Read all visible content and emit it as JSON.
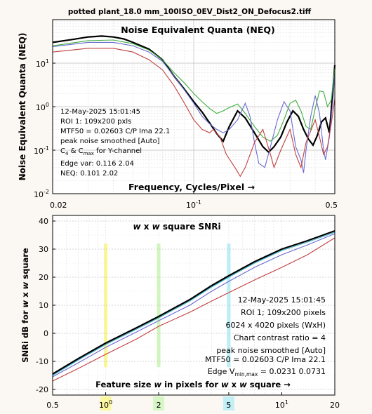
{
  "file_title": "potted plant_18.0 mm_100ISO_0EV_Dist2_ON_Defocus2.tiff",
  "colors": {
    "background": "#fbf8f3",
    "title": "#7a1a6e",
    "black": "#000000",
    "green": "#3cae3c",
    "blue": "#6a6ad0",
    "red": "#c04040",
    "cyan": "#38b0c8",
    "band_yellow": "#fbf77a",
    "band_green": "#c8f5b0",
    "band_cyan": "#a9ecf7"
  },
  "chart_data": [
    {
      "type": "line",
      "title": "Noise Equivalent Quanta (NEQ)",
      "xlabel": "Frequency, Cycles/Pixel →",
      "ylabel": "Noise Equivalent Quanta (NEQ)",
      "xscale": "log",
      "yscale": "log",
      "xlim": [
        0.02,
        0.5
      ],
      "ylim": [
        0.01,
        100
      ],
      "xticks": [
        {
          "value": 0.02,
          "label": "0.02"
        },
        {
          "value": 0.1,
          "label": "10^-1"
        },
        {
          "value": 0.5,
          "label": "0.5"
        }
      ],
      "yticks": [
        {
          "value": 0.01,
          "label": "10^-2"
        },
        {
          "value": 0.1,
          "label": "10^-1"
        },
        {
          "value": 1,
          "label": "10^0"
        },
        {
          "value": 10,
          "label": "10^1"
        }
      ],
      "grid": true,
      "annotations": [
        "12-May-2025 15:01:45",
        "ROI 1:  109x200 pxls",
        "MTF50 = 0.02603 C/P  Ima 22.1",
        "peak noise smoothed  [Auto]",
        "C_4 & C_max for Y-channel",
        "Edge var:  0.116  2.04",
        "NEQ:      0.101  2.02"
      ],
      "series": [
        {
          "color": "black",
          "points": [
            [
              0.02,
              30
            ],
            [
              0.025,
              35
            ],
            [
              0.03,
              40
            ],
            [
              0.035,
              42
            ],
            [
              0.04,
              40
            ],
            [
              0.045,
              36
            ],
            [
              0.05,
              30
            ],
            [
              0.06,
              21
            ],
            [
              0.07,
              12
            ],
            [
              0.08,
              5
            ],
            [
              0.09,
              2.5
            ],
            [
              0.1,
              1.3
            ],
            [
              0.11,
              0.75
            ],
            [
              0.12,
              0.42
            ],
            [
              0.13,
              0.24
            ],
            [
              0.14,
              0.16
            ],
            [
              0.15,
              0.35
            ],
            [
              0.165,
              0.8
            ],
            [
              0.18,
              0.55
            ],
            [
              0.2,
              0.25
            ],
            [
              0.22,
              0.12
            ],
            [
              0.235,
              0.09
            ],
            [
              0.25,
              0.12
            ],
            [
              0.27,
              0.2
            ],
            [
              0.29,
              0.45
            ],
            [
              0.31,
              0.8
            ],
            [
              0.33,
              0.6
            ],
            [
              0.35,
              0.3
            ],
            [
              0.37,
              0.18
            ],
            [
              0.39,
              0.13
            ],
            [
              0.41,
              0.22
            ],
            [
              0.43,
              0.45
            ],
            [
              0.45,
              0.55
            ],
            [
              0.47,
              0.25
            ],
            [
              0.48,
              0.8
            ],
            [
              0.5,
              9
            ]
          ]
        },
        {
          "color": "green",
          "points": [
            [
              0.02,
              25
            ],
            [
              0.03,
              33
            ],
            [
              0.04,
              34
            ],
            [
              0.05,
              28
            ],
            [
              0.06,
              20
            ],
            [
              0.07,
              12
            ],
            [
              0.08,
              6
            ],
            [
              0.09,
              3.5
            ],
            [
              0.1,
              2
            ],
            [
              0.11,
              1.3
            ],
            [
              0.12,
              0.9
            ],
            [
              0.13,
              0.7
            ],
            [
              0.14,
              0.8
            ],
            [
              0.15,
              0.95
            ],
            [
              0.165,
              1.15
            ],
            [
              0.18,
              0.7
            ],
            [
              0.2,
              0.35
            ],
            [
              0.22,
              0.2
            ],
            [
              0.24,
              0.16
            ],
            [
              0.26,
              0.22
            ],
            [
              0.28,
              0.5
            ],
            [
              0.3,
              1.2
            ],
            [
              0.32,
              1.4
            ],
            [
              0.34,
              0.8
            ],
            [
              0.36,
              0.35
            ],
            [
              0.38,
              0.3
            ],
            [
              0.4,
              0.9
            ],
            [
              0.42,
              2.3
            ],
            [
              0.44,
              2.2
            ],
            [
              0.46,
              1.0
            ],
            [
              0.48,
              1.4
            ],
            [
              0.5,
              8
            ]
          ]
        },
        {
          "color": "blue",
          "points": [
            [
              0.02,
              24
            ],
            [
              0.03,
              30
            ],
            [
              0.04,
              30
            ],
            [
              0.05,
              25
            ],
            [
              0.06,
              18
            ],
            [
              0.07,
              11
            ],
            [
              0.08,
              5
            ],
            [
              0.09,
              2.4
            ],
            [
              0.1,
              1.2
            ],
            [
              0.11,
              0.6
            ],
            [
              0.12,
              0.4
            ],
            [
              0.13,
              0.3
            ],
            [
              0.14,
              0.25
            ],
            [
              0.15,
              0.3
            ],
            [
              0.165,
              0.5
            ],
            [
              0.18,
              1.2
            ],
            [
              0.19,
              0.6
            ],
            [
              0.2,
              0.15
            ],
            [
              0.21,
              0.05
            ],
            [
              0.225,
              0.04
            ],
            [
              0.24,
              0.12
            ],
            [
              0.26,
              0.5
            ],
            [
              0.28,
              1.3
            ],
            [
              0.3,
              0.8
            ],
            [
              0.32,
              0.12
            ],
            [
              0.34,
              0.06
            ],
            [
              0.35,
              0.03
            ],
            [
              0.36,
              0.1
            ],
            [
              0.38,
              0.6
            ],
            [
              0.4,
              1.8
            ],
            [
              0.42,
              0.7
            ],
            [
              0.44,
              0.1
            ],
            [
              0.45,
              0.06
            ],
            [
              0.47,
              0.2
            ],
            [
              0.49,
              1.5
            ],
            [
              0.5,
              6
            ]
          ]
        },
        {
          "color": "red",
          "points": [
            [
              0.02,
              18
            ],
            [
              0.03,
              22
            ],
            [
              0.04,
              22
            ],
            [
              0.05,
              18
            ],
            [
              0.06,
              12
            ],
            [
              0.07,
              7
            ],
            [
              0.08,
              3
            ],
            [
              0.09,
              1.2
            ],
            [
              0.1,
              0.5
            ],
            [
              0.11,
              0.3
            ],
            [
              0.12,
              0.25
            ],
            [
              0.125,
              0.3
            ],
            [
              0.135,
              0.2
            ],
            [
              0.145,
              0.08
            ],
            [
              0.16,
              0.04
            ],
            [
              0.17,
              0.025
            ],
            [
              0.18,
              0.04
            ],
            [
              0.2,
              0.15
            ],
            [
              0.22,
              0.3
            ],
            [
              0.24,
              0.08
            ],
            [
              0.25,
              0.04
            ],
            [
              0.27,
              0.1
            ],
            [
              0.3,
              0.3
            ],
            [
              0.32,
              0.08
            ],
            [
              0.34,
              0.04
            ],
            [
              0.36,
              0.15
            ],
            [
              0.4,
              0.5
            ],
            [
              0.42,
              0.2
            ],
            [
              0.44,
              0.08
            ],
            [
              0.46,
              0.12
            ],
            [
              0.48,
              0.4
            ],
            [
              0.5,
              1.5
            ]
          ]
        }
      ]
    },
    {
      "type": "line",
      "title": "w x w square SNRi",
      "xlabel": "Feature size w in pixels for w x w square →",
      "ylabel": "SNRi dB for w x w square",
      "xscale": "log",
      "xlim": [
        0.5,
        20
      ],
      "ylim": [
        -22,
        42
      ],
      "xticks": [
        {
          "value": 0.5,
          "label": "0.5"
        },
        {
          "value": 1,
          "label": "10^0"
        },
        {
          "value": 2,
          "label": "2"
        },
        {
          "value": 5,
          "label": "5"
        },
        {
          "value": 10,
          "label": "10^1"
        },
        {
          "value": 20,
          "label": "20"
        }
      ],
      "yticks": [
        -20,
        -10,
        0,
        10,
        20,
        30,
        40
      ],
      "grid": true,
      "annotations": [
        "12-May-2025 15:01:45",
        "ROI 1;  109x200 pixels",
        "6024 x 4020 pixels (WxH)",
        "Chart contrast ratio = 4",
        "peak noise smoothed  [Auto]",
        "MTF50 = 0.02603 C/P  Ima 22.1",
        "Edge V_min,max = 0.0231 0.0731"
      ],
      "bands": [
        {
          "x": 1.0,
          "color": "band_yellow"
        },
        {
          "x": 2.0,
          "color": "band_green"
        },
        {
          "x": 5.0,
          "color": "band_cyan"
        }
      ],
      "series": [
        {
          "color": "black",
          "points": [
            [
              0.5,
              -14.5
            ],
            [
              0.7,
              -9
            ],
            [
              1,
              -3.5
            ],
            [
              1.5,
              2
            ],
            [
              2,
              6
            ],
            [
              3,
              12
            ],
            [
              4,
              17
            ],
            [
              5,
              20.5
            ],
            [
              7,
              25.5
            ],
            [
              10,
              30
            ],
            [
              14,
              33
            ],
            [
              20,
              36.5
            ]
          ]
        },
        {
          "color": "cyan",
          "points": [
            [
              0.5,
              -15
            ],
            [
              0.7,
              -9.5
            ],
            [
              1,
              -4
            ],
            [
              1.5,
              1.5
            ],
            [
              2,
              5.5
            ],
            [
              3,
              11.5
            ],
            [
              4,
              16.5
            ],
            [
              5,
              20
            ],
            [
              7,
              25
            ],
            [
              10,
              29.5
            ],
            [
              14,
              32.5
            ],
            [
              20,
              36
            ]
          ]
        },
        {
          "color": "blue",
          "points": [
            [
              0.5,
              -15.5
            ],
            [
              0.7,
              -10.5
            ],
            [
              1,
              -5
            ],
            [
              1.5,
              0.5
            ],
            [
              2,
              4.5
            ],
            [
              3,
              10
            ],
            [
              4,
              15
            ],
            [
              5,
              18.5
            ],
            [
              7,
              23.5
            ],
            [
              10,
              28
            ],
            [
              14,
              31.5
            ],
            [
              20,
              35.5
            ]
          ]
        },
        {
          "color": "red",
          "points": [
            [
              0.5,
              -17
            ],
            [
              0.7,
              -12.5
            ],
            [
              1,
              -7.5
            ],
            [
              1.5,
              -2
            ],
            [
              2,
              2.5
            ],
            [
              3,
              7.5
            ],
            [
              4,
              11.5
            ],
            [
              5,
              14.5
            ],
            [
              7,
              19
            ],
            [
              10,
              23.5
            ],
            [
              14,
              28
            ],
            [
              20,
              34
            ]
          ]
        }
      ]
    }
  ],
  "labels": {
    "top_annot_lines": [
      "12-May-2025 15:01:45",
      "ROI 1:  109x200 pxls",
      "MTF50 = 0.02603 C/P  Ima 22.1",
      "peak noise smoothed  [Auto]"
    ],
    "c_line": {
      "c1": "C",
      "s1": "4",
      "mid": " & C",
      "s2": "max",
      "tail": " for Y-channel"
    },
    "top_annot_tail": [
      "Edge var:  0.116  2.04",
      "NEQ:      0.101  2.02"
    ],
    "bottom_annot_lines": [
      "12-May-2025 15:01:45",
      "ROI 1;  109x200 pixels",
      "6024 x 4020 pixels (WxH)",
      "Chart contrast ratio = 4",
      "peak noise smoothed  [Auto]",
      "MTF50 = 0.02603 C/P  Ima 22.1"
    ],
    "edge_line": {
      "pre": "Edge V",
      "sub": "min,max",
      "post": " = 0.0231 0.0731"
    },
    "bottom_title": {
      "a": "w",
      "b": " x ",
      "c": "w",
      "d": " square SNRi"
    },
    "bottom_xlabel": {
      "a": "Feature size ",
      "b": "w",
      "c": " in pixels for ",
      "d": "w",
      "e": " x ",
      "f": "w",
      "g": " square →"
    },
    "bottom_ylabel": {
      "a": "SNRi dB for ",
      "b": "w",
      "c": " x ",
      "d": "w",
      "e": " square"
    }
  }
}
